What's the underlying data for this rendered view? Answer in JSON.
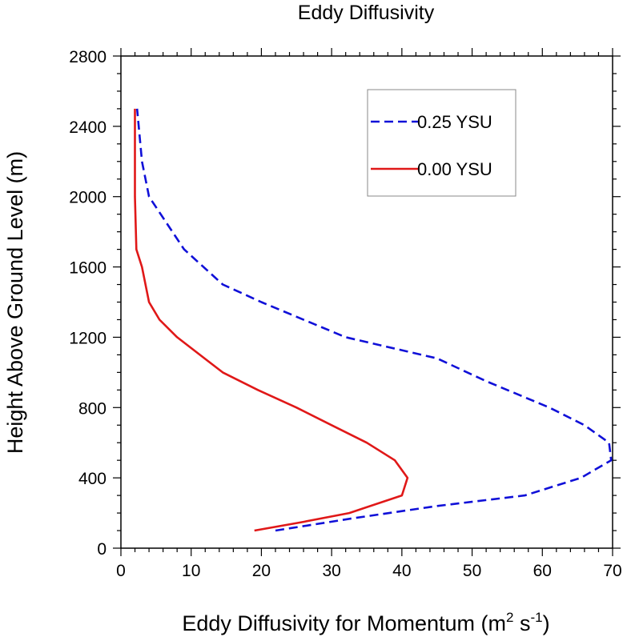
{
  "chart_data": {
    "type": "line",
    "title": "Eddy Diffusivity",
    "xlabel": "Eddy Diffusivity for Momentum",
    "xlabel_unit": {
      "open": "(m",
      "sup1": "2",
      "mid": " s",
      "sup2": "-1",
      "close": ")"
    },
    "ylabel": "Height Above Ground Level (m)",
    "xlim": [
      0,
      70
    ],
    "ylim": [
      0,
      2800
    ],
    "x_ticks": [
      0,
      10,
      20,
      30,
      40,
      50,
      60,
      70
    ],
    "y_ticks": [
      0,
      400,
      800,
      1200,
      1600,
      2000,
      2400,
      2800
    ],
    "grid": false,
    "legend_position": "top-right",
    "series": [
      {
        "name": "0.25 YSU",
        "color": "#1010d8",
        "style": "dashed",
        "points": [
          [
            22,
            100
          ],
          [
            33,
            170
          ],
          [
            45,
            240
          ],
          [
            57.5,
            300
          ],
          [
            65.5,
            400
          ],
          [
            69.8,
            500
          ],
          [
            69.5,
            600
          ],
          [
            66,
            700
          ],
          [
            61,
            800
          ],
          [
            52,
            950
          ],
          [
            45,
            1080
          ],
          [
            32,
            1200
          ],
          [
            20,
            1400
          ],
          [
            14.5,
            1500
          ],
          [
            9,
            1700
          ],
          [
            4,
            2000
          ],
          [
            3,
            2200
          ],
          [
            2.3,
            2500
          ]
        ]
      },
      {
        "name": "0.00 YSU",
        "color": "#e01818",
        "style": "solid",
        "points": [
          [
            19,
            100
          ],
          [
            26,
            150
          ],
          [
            32.5,
            200
          ],
          [
            40,
            300
          ],
          [
            40.8,
            400
          ],
          [
            39,
            500
          ],
          [
            35,
            600
          ],
          [
            30,
            700
          ],
          [
            25,
            800
          ],
          [
            19.5,
            900
          ],
          [
            14.5,
            1000
          ],
          [
            8,
            1200
          ],
          [
            5.5,
            1300
          ],
          [
            4,
            1400
          ],
          [
            3,
            1600
          ],
          [
            2.2,
            1700
          ],
          [
            2,
            2000
          ],
          [
            2,
            2500
          ]
        ]
      }
    ]
  }
}
